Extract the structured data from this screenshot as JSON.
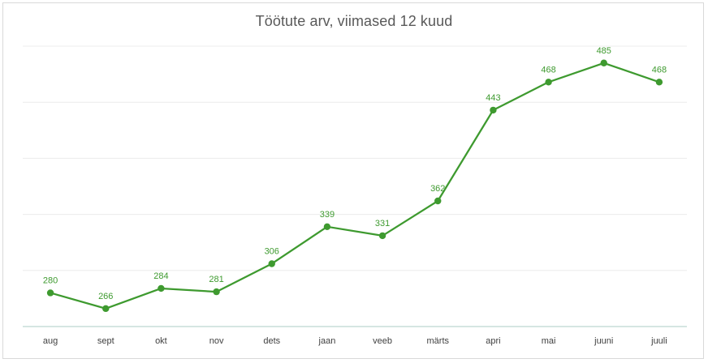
{
  "chart_data": {
    "type": "line",
    "title": "Töötute arv, viimased 12 kuud",
    "xlabel": "",
    "ylabel": "",
    "categories": [
      "aug",
      "sept",
      "okt",
      "nov",
      "dets",
      "jaan",
      "veeb",
      "märts",
      "apri",
      "mai",
      "juuni",
      "juuli"
    ],
    "series": [
      {
        "values": [
          280,
          266,
          284,
          281,
          306,
          339,
          331,
          362,
          443,
          468,
          485,
          468
        ],
        "labels": [
          "280",
          "266",
          "284",
          "281",
          "306",
          "339",
          "331",
          "362",
          "443",
          "468",
          "485",
          "468"
        ],
        "color": "#3e9a2f"
      }
    ],
    "ylim": [
      250,
      500
    ],
    "grid": true,
    "legend": "none",
    "data_labels": "above"
  }
}
